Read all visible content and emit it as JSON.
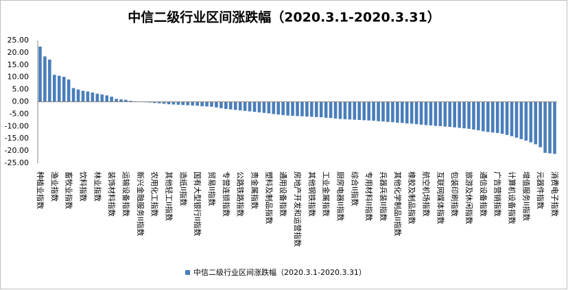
{
  "chart_data": {
    "type": "bar",
    "title": "中信二级行业区间涨跌幅（2020.3.1-2020.3.31）",
    "categories": [
      "种植业指数",
      null,
      null,
      "渔业指数",
      null,
      null,
      "畜牧业指数",
      null,
      null,
      "饮料指数",
      null,
      null,
      "林业指数",
      null,
      null,
      "装饰材料指数",
      null,
      null,
      "运输设备指数",
      null,
      null,
      "新兴金融服务II指数",
      null,
      null,
      "农用化工指数",
      null,
      null,
      "其他轻工II指数",
      null,
      null,
      "造纸II指数",
      null,
      null,
      "国有大型银行II指数",
      null,
      null,
      "贸易II指数",
      null,
      null,
      "专营连锁指数",
      null,
      null,
      "公路铁路指数",
      null,
      null,
      "贵金属指数",
      null,
      null,
      "塑料及制品指数",
      null,
      null,
      "通用设备指数",
      null,
      null,
      "房地产开发和运营指数",
      null,
      null,
      "其他钢铁指数",
      null,
      null,
      "工业金属指数",
      null,
      null,
      "厨房电器II指数",
      null,
      null,
      "综合II指数",
      null,
      null,
      "专用材料II指数",
      null,
      null,
      "兵器兵装II指数",
      null,
      null,
      "其他化学制品II指数",
      null,
      null,
      "橡胶及制品指数",
      null,
      null,
      "航空机场指数",
      null,
      null,
      "互联网媒体指数",
      null,
      null,
      "包装印刷指数",
      null,
      null,
      "旅游及休闲指数",
      null,
      null,
      "通信设备指数",
      null,
      null,
      "广告营销指数",
      null,
      null,
      "计算机设备指数",
      null,
      null,
      "增值服务II指数",
      null,
      null,
      "元器件指数",
      null,
      null,
      "消费电子指数"
    ],
    "series": [
      {
        "name": "中信二级行业区间涨跌幅（2020.3.1-2020.3.31）",
        "color": "#4a7ebb",
        "values": [
          22.5,
          18.5,
          17.2,
          11.0,
          10.6,
          10.2,
          9.1,
          5.6,
          5.0,
          4.5,
          4.2,
          3.8,
          3.3,
          3.0,
          2.6,
          2.1,
          1.2,
          1.0,
          0.8,
          0.4,
          0.2,
          -0.1,
          -0.2,
          -0.3,
          -0.5,
          -0.6,
          -0.8,
          -1.0,
          -1.1,
          -1.2,
          -1.3,
          -1.4,
          -1.5,
          -1.6,
          -1.8,
          -1.9,
          -2.0,
          -2.3,
          -2.6,
          -2.9,
          -3.1,
          -3.3,
          -3.5,
          -3.7,
          -3.9,
          -4.1,
          -4.3,
          -4.5,
          -4.7,
          -5.0,
          -5.2,
          -5.4,
          -5.6,
          -5.7,
          -5.8,
          -5.9,
          -6.0,
          -6.1,
          -6.2,
          -6.3,
          -6.5,
          -6.6,
          -6.8,
          -7.0,
          -7.1,
          -7.2,
          -7.3,
          -7.4,
          -7.5,
          -7.6,
          -7.7,
          -7.9,
          -8.0,
          -8.2,
          -8.3,
          -8.5,
          -8.6,
          -8.8,
          -8.9,
          -9.1,
          -9.3,
          -9.5,
          -9.6,
          -9.8,
          -9.9,
          -10.1,
          -10.2,
          -10.4,
          -10.6,
          -10.8,
          -11.0,
          -11.3,
          -11.6,
          -12.0,
          -12.3,
          -12.5,
          -12.7,
          -13.0,
          -13.5,
          -14.0,
          -14.6,
          -15.2,
          -15.8,
          -16.5,
          -17.3,
          -18.5,
          -20.8,
          -21.0,
          -21.2
        ]
      }
    ],
    "ylim": [
      -25,
      25
    ],
    "yticks": [
      {
        "value": 25,
        "label": "25.00"
      },
      {
        "value": 20,
        "label": "20.00"
      },
      {
        "value": 15,
        "label": "15.00"
      },
      {
        "value": 10,
        "label": "10.00"
      },
      {
        "value": 5,
        "label": "5.00"
      },
      {
        "value": 0,
        "label": "0.00"
      },
      {
        "value": -5,
        "label": "-5.00"
      },
      {
        "value": -10,
        "label": "-10.00"
      },
      {
        "value": -15,
        "label": "-15.00"
      },
      {
        "value": -20,
        "label": "-20.00"
      },
      {
        "value": -25,
        "label": "-25.00"
      }
    ],
    "grid": false,
    "legend": "bottom"
  }
}
